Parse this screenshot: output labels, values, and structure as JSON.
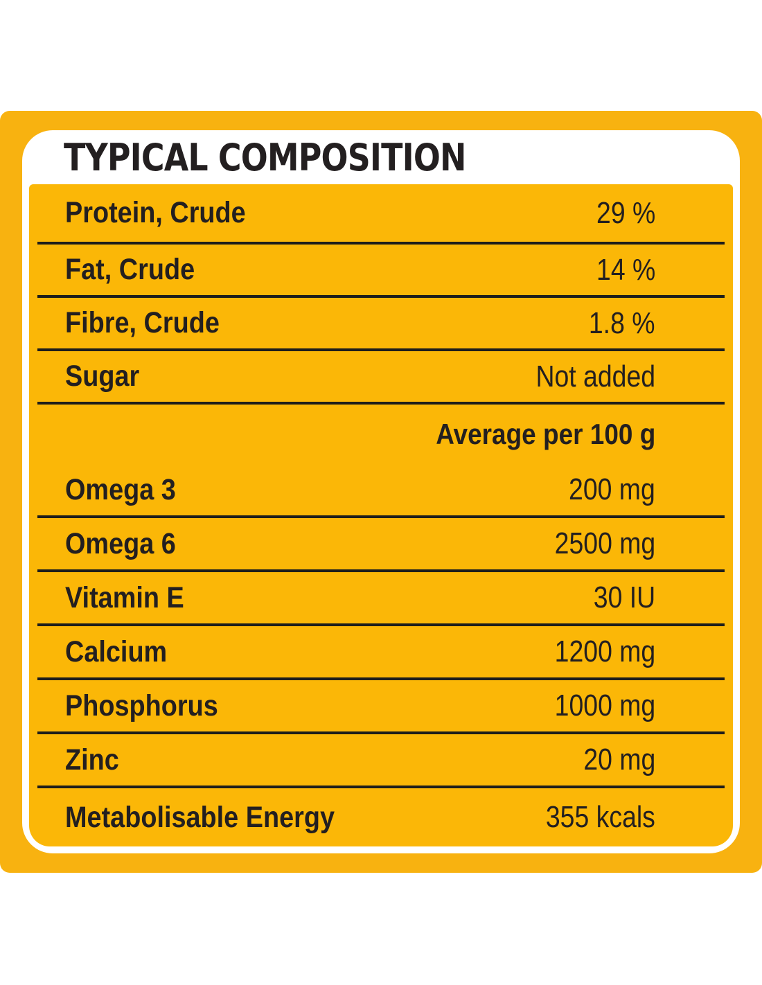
{
  "title": "TYPICAL COMPOSITION",
  "colors": {
    "background_yellow": "#F8B210",
    "table_yellow": "#FBB707",
    "card_white": "#FFFFFF",
    "text_black": "#231F20",
    "rule_black": "#1D1D1B"
  },
  "composition": {
    "rows": [
      {
        "label": "Protein, Crude",
        "value": "29 %"
      },
      {
        "label": "Fat, Crude",
        "value": "14 %"
      },
      {
        "label": "Fibre, Crude",
        "value": "1.8 %"
      },
      {
        "label": "Sugar",
        "value": "Not added"
      }
    ],
    "average_header": "Average per 100 g",
    "nutrient_rows": [
      {
        "label": "Omega 3",
        "value": "200 mg"
      },
      {
        "label": "Omega 6",
        "value": "2500 mg"
      },
      {
        "label": "Vitamin E",
        "value": "30 IU"
      },
      {
        "label": "Calcium",
        "value": "1200 mg"
      },
      {
        "label": "Phosphorus",
        "value": "1000 mg"
      },
      {
        "label": "Zinc",
        "value": "20 mg"
      },
      {
        "label": "Metabolisable Energy",
        "value": "355 kcals"
      }
    ]
  }
}
